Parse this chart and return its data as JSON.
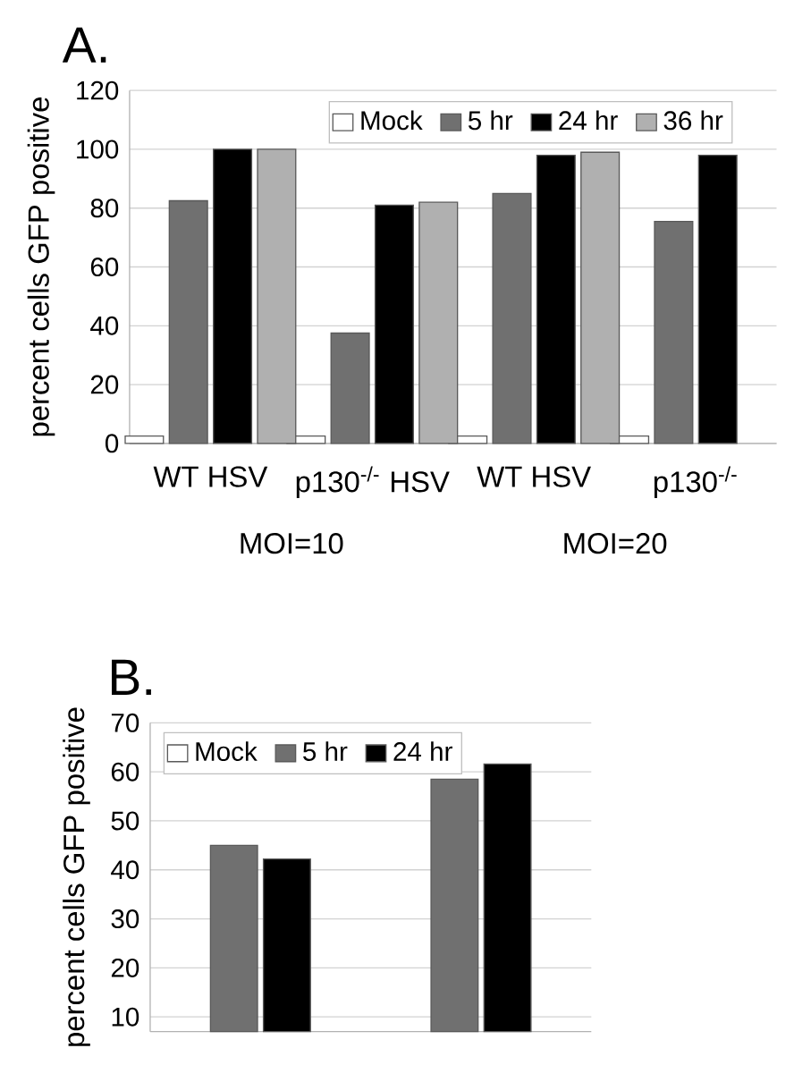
{
  "chart_data": [
    {
      "type": "bar",
      "title": "A.",
      "ylabel": "percent cells GFP positive",
      "categories": [
        "WT HSV",
        "p130$^{-/-}$ HSV",
        "WT HSV",
        "p130$^{-/-}$"
      ],
      "ylim": [
        0,
        120
      ],
      "yticks": [
        0,
        20,
        40,
        60,
        80,
        100,
        120
      ],
      "grid": "y",
      "legend": "top",
      "annotations": [
        "MOI=10",
        "MOI=20"
      ],
      "series": [
        {
          "name": "Mock",
          "color": "#ffffff",
          "values": [
            2.5,
            2.5,
            2.5,
            2.5
          ]
        },
        {
          "name": "5 hr",
          "color": "#707070",
          "values": [
            82.5,
            37.5,
            85,
            75.5
          ]
        },
        {
          "name": "24 hr",
          "color": "#000000",
          "values": [
            100,
            81,
            98,
            98
          ]
        },
        {
          "name": "36 hr",
          "color": "#b0b0b0",
          "values": [
            100,
            82,
            99,
            null
          ]
        }
      ]
    },
    {
      "type": "bar",
      "title": "B.",
      "ylabel": "percent cells GFP positive",
      "categories": [
        null,
        null
      ],
      "ylim": [
        7,
        70
      ],
      "yticks": [
        10,
        20,
        30,
        40,
        50,
        60,
        70
      ],
      "grid": "y",
      "legend": "top left",
      "series": [
        {
          "name": "Mock",
          "color": "#ffffff",
          "values": [
            null,
            null
          ]
        },
        {
          "name": "5 hr",
          "color": "#707070",
          "values": [
            45,
            58.5
          ]
        },
        {
          "name": "24 hr",
          "color": "#000000",
          "values": [
            42.2,
            61.6
          ]
        }
      ]
    }
  ]
}
